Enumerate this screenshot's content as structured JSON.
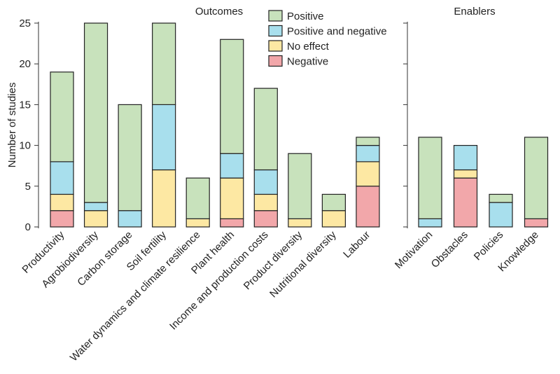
{
  "chart_data": [
    {
      "type": "bar",
      "stacked": true,
      "title": "Outcomes",
      "ylabel": "Number of studies",
      "ylim": [
        0,
        25
      ],
      "yticks": [
        "0",
        "5",
        "10",
        "15",
        "20",
        "25"
      ],
      "categories": [
        "Productivity",
        "Agrobiodiversity",
        "Carbon storage",
        "Soil fertility",
        "Water dynamics and climate resilience",
        "Plant health",
        "Income and production costs",
        "Product diversity",
        "Nutritional diversity",
        "Labour"
      ],
      "series": [
        {
          "name": "Negative",
          "color": "#f2a7aa",
          "values": [
            2,
            0,
            0,
            0,
            0,
            1,
            2,
            0,
            0,
            5
          ]
        },
        {
          "name": "No effect",
          "color": "#fde8a3",
          "values": [
            2,
            2,
            0,
            7,
            1,
            5,
            2,
            1,
            2,
            3
          ]
        },
        {
          "name": "Positive and negative",
          "color": "#a8dfed",
          "values": [
            4,
            1,
            2,
            8,
            0,
            3,
            3,
            0,
            0,
            2
          ]
        },
        {
          "name": "Positive",
          "color": "#c8e2bc",
          "values": [
            11,
            22,
            13,
            10,
            5,
            14,
            10,
            8,
            2,
            1
          ]
        }
      ],
      "legend": {
        "position": "top",
        "order": [
          "Positive",
          "Positive and negative",
          "No effect",
          "Negative"
        ]
      }
    },
    {
      "type": "bar",
      "stacked": true,
      "title": "Enablers",
      "ylim": [
        0,
        25
      ],
      "categories": [
        "Motivation",
        "Obstacles",
        "Policies",
        "Knowledge"
      ],
      "series": [
        {
          "name": "Negative",
          "color": "#f2a7aa",
          "values": [
            0,
            6,
            0,
            1
          ]
        },
        {
          "name": "No effect",
          "color": "#fde8a3",
          "values": [
            0,
            1,
            0,
            0
          ]
        },
        {
          "name": "Positive and negative",
          "color": "#a8dfed",
          "values": [
            1,
            3,
            3,
            0
          ]
        },
        {
          "name": "Positive",
          "color": "#c8e2bc",
          "values": [
            10,
            0,
            1,
            10
          ]
        }
      ]
    }
  ]
}
